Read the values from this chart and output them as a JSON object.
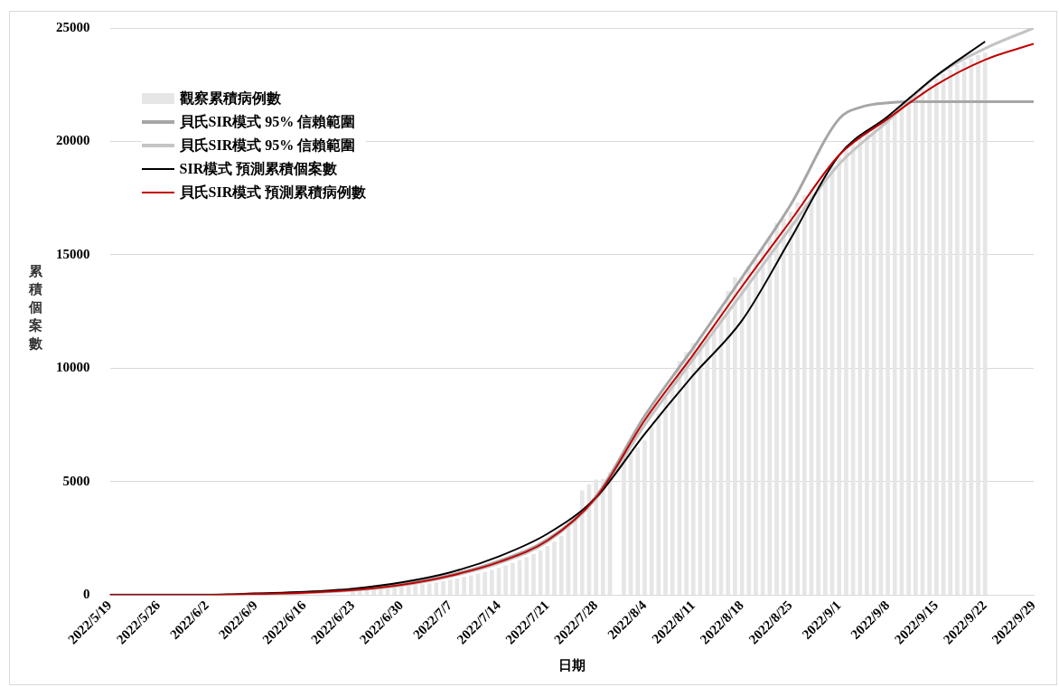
{
  "chart_data": {
    "type": "line",
    "xlabel": "日期",
    "ylabel": "累積個案數",
    "x": [
      "2022-06-23",
      "2022-06-24",
      "2022-06-25",
      "2022-06-26",
      "2022-06-27",
      "2022-06-28",
      "2022-06-29",
      "2022-06-30",
      "2022-07-01",
      "2022-07-02",
      "2022-07-03",
      "2022-07-04",
      "2022-07-05",
      "2022-07-06",
      "2022-07-07",
      "2022-07-08",
      "2022-07-09",
      "2022-07-10",
      "2022-07-11",
      "2022-07-12",
      "2022-07-13",
      "2022-07-14",
      "2022-07-15",
      "2022-07-16",
      "2022-07-17",
      "2022-07-18",
      "2022-07-19",
      "2022-07-20",
      "2022-07-21",
      "2022-07-22",
      "2022-07-23",
      "2022-07-24",
      "2022-07-25",
      "2022-07-26",
      "2022-07-27",
      "2022-07-28",
      "2022-07-29",
      "2022-07-30",
      "2022-07-31",
      "2022-08-01",
      "2022-08-02",
      "2022-08-03",
      "2022-08-04",
      "2022-08-05",
      "2022-08-06",
      "2022-08-07",
      "2022-08-08",
      "2022-08-09",
      "2022-08-10",
      "2022-08-11",
      "2022-08-12",
      "2022-08-13",
      "2022-08-14",
      "2022-08-15",
      "2022-08-16",
      "2022-08-17",
      "2022-08-18",
      "2022-08-19",
      "2022-08-20",
      "2022-08-21",
      "2022-08-22",
      "2022-08-23",
      "2022-08-24",
      "2022-08-25",
      "2022-08-26",
      "2022-08-27",
      "2022-08-28",
      "2022-08-29",
      "2022-08-30",
      "2022-08-31",
      "2022-09-01",
      "2022-09-02",
      "2022-09-03",
      "2022-09-04",
      "2022-09-05",
      "2022-09-06",
      "2022-09-07",
      "2022-09-08",
      "2022-09-09",
      "2022-09-10",
      "2022-09-11",
      "2022-09-12",
      "2022-09-13",
      "2022-09-14",
      "2022-09-15",
      "2022-09-16",
      "2022-09-17",
      "2022-09-18",
      "2022-09-19",
      "2022-09-20",
      "2022-09-21",
      "2022-09-22"
    ],
    "series": [
      {
        "name": "觀察累積病例數",
        "type": "bar",
        "color": "#e6e6e6",
        "values": [
          200,
          220,
          240,
          260,
          280,
          310,
          330,
          360,
          400,
          430,
          470,
          510,
          550,
          600,
          660,
          710,
          780,
          850,
          920,
          1000,
          1090,
          1180,
          1290,
          1400,
          1520,
          1660,
          1800,
          1960,
          2150,
          2350,
          2600,
          3200,
          3500,
          4600,
          4870,
          5080,
          5100,
          5400,
          null,
          6000,
          6250,
          6500,
          6800,
          7400,
          8000,
          8700,
          9400,
          10300,
          10700,
          11100,
          11100,
          11400,
          11800,
          12600,
          13400,
          14000,
          14000,
          14500,
          14800,
          15300,
          15800,
          16400,
          16600,
          16900,
          17300,
          17600,
          17900,
          18200,
          18600,
          19000,
          19300,
          19600,
          19900,
          20150,
          20400,
          20650,
          20850,
          21050,
          21300,
          21550,
          21800,
          22050,
          22300,
          22500,
          22750,
          22950,
          23150,
          23350,
          23500,
          23650,
          23800,
          23900
        ]
      },
      {
        "name": "貝氏SIR模式 95% 信賴範圍",
        "color": "#a6a6a6",
        "x": [
          "2022-05-19",
          "2022-05-26",
          "2022-06-02",
          "2022-06-09",
          "2022-06-16",
          "2022-06-23",
          "2022-06-30",
          "2022-07-07",
          "2022-07-14",
          "2022-07-21",
          "2022-07-28",
          "2022-08-04",
          "2022-08-11",
          "2022-08-18",
          "2022-08-25",
          "2022-09-01",
          "2022-09-04",
          "2022-09-08",
          "2022-09-12",
          "2022-09-15",
          "2022-09-22",
          "2022-09-29"
        ],
        "values": [
          0,
          0,
          0,
          50,
          100,
          230,
          470,
          880,
          1500,
          2450,
          4350,
          7900,
          10900,
          14000,
          17200,
          21000,
          21500,
          21700,
          21750,
          21750,
          21750,
          21750
        ]
      },
      {
        "name": "貝氏SIR模式 95% 信賴範圍",
        "color": "#c4c4c4",
        "x": [
          "2022-05-19",
          "2022-05-26",
          "2022-06-02",
          "2022-06-09",
          "2022-06-16",
          "2022-06-23",
          "2022-06-30",
          "2022-07-07",
          "2022-07-14",
          "2022-07-21",
          "2022-07-28",
          "2022-08-04",
          "2022-08-11",
          "2022-08-18",
          "2022-08-25",
          "2022-09-01",
          "2022-09-08",
          "2022-09-15",
          "2022-09-22",
          "2022-09-29"
        ],
        "values": [
          0,
          0,
          0,
          50,
          100,
          210,
          430,
          820,
          1400,
          2350,
          4250,
          7500,
          10400,
          13300,
          16200,
          19000,
          20900,
          22900,
          24100,
          25000
        ]
      },
      {
        "name": "SIR模式 預測累積個案數",
        "color": "#000000",
        "x": [
          "2022-05-19",
          "2022-05-26",
          "2022-06-02",
          "2022-06-09",
          "2022-06-16",
          "2022-06-23",
          "2022-06-30",
          "2022-07-07",
          "2022-07-14",
          "2022-07-21",
          "2022-07-28",
          "2022-08-04",
          "2022-08-11",
          "2022-08-18",
          "2022-08-25",
          "2022-09-01",
          "2022-09-08",
          "2022-09-15",
          "2022-09-22"
        ],
        "values": [
          0,
          0,
          0,
          70,
          140,
          280,
          560,
          1000,
          1700,
          2700,
          4300,
          7100,
          9700,
          12100,
          15700,
          19400,
          21100,
          22900,
          24400
        ]
      },
      {
        "name": "貝氏SIR模式 預測累積病例數",
        "color": "#c00000",
        "x": [
          "2022-05-19",
          "2022-05-26",
          "2022-06-02",
          "2022-06-09",
          "2022-06-16",
          "2022-06-23",
          "2022-06-30",
          "2022-07-07",
          "2022-07-14",
          "2022-07-21",
          "2022-07-28",
          "2022-08-04",
          "2022-08-11",
          "2022-08-18",
          "2022-08-25",
          "2022-09-01",
          "2022-09-08",
          "2022-09-15",
          "2022-09-22",
          "2022-09-29"
        ],
        "values": [
          0,
          0,
          0,
          50,
          100,
          220,
          450,
          850,
          1450,
          2400,
          4300,
          7700,
          10600,
          13600,
          16500,
          19400,
          21000,
          22500,
          23600,
          24300
        ]
      }
    ],
    "xlim": [
      "2022-05-19",
      "2022-09-29"
    ],
    "xticks": [
      {
        "value": "2022-05-19",
        "label": "2022/5/19"
      },
      {
        "value": "2022-05-26",
        "label": "2022/5/26"
      },
      {
        "value": "2022-06-02",
        "label": "2022/6/2"
      },
      {
        "value": "2022-06-09",
        "label": "2022/6/9"
      },
      {
        "value": "2022-06-16",
        "label": "2022/6/16"
      },
      {
        "value": "2022-06-23",
        "label": "2022/6/23"
      },
      {
        "value": "2022-06-30",
        "label": "2022/6/30"
      },
      {
        "value": "2022-07-07",
        "label": "2022/7/7"
      },
      {
        "value": "2022-07-14",
        "label": "2022/7/14"
      },
      {
        "value": "2022-07-21",
        "label": "2022/7/21"
      },
      {
        "value": "2022-07-28",
        "label": "2022/7/28"
      },
      {
        "value": "2022-08-04",
        "label": "2022/8/4"
      },
      {
        "value": "2022-08-11",
        "label": "2022/8/11"
      },
      {
        "value": "2022-08-18",
        "label": "2022/8/18"
      },
      {
        "value": "2022-08-25",
        "label": "2022/8/25"
      },
      {
        "value": "2022-09-01",
        "label": "2022/9/1"
      },
      {
        "value": "2022-09-08",
        "label": "2022/9/8"
      },
      {
        "value": "2022-09-15",
        "label": "2022/9/15"
      },
      {
        "value": "2022-09-22",
        "label": "2022/9/22"
      },
      {
        "value": "2022-09-29",
        "label": "2022/9/29"
      }
    ],
    "ylim": [
      0,
      25000
    ],
    "yticks": [
      0,
      5000,
      10000,
      15000,
      20000,
      25000
    ],
    "grid": "y",
    "legend": "top left"
  }
}
